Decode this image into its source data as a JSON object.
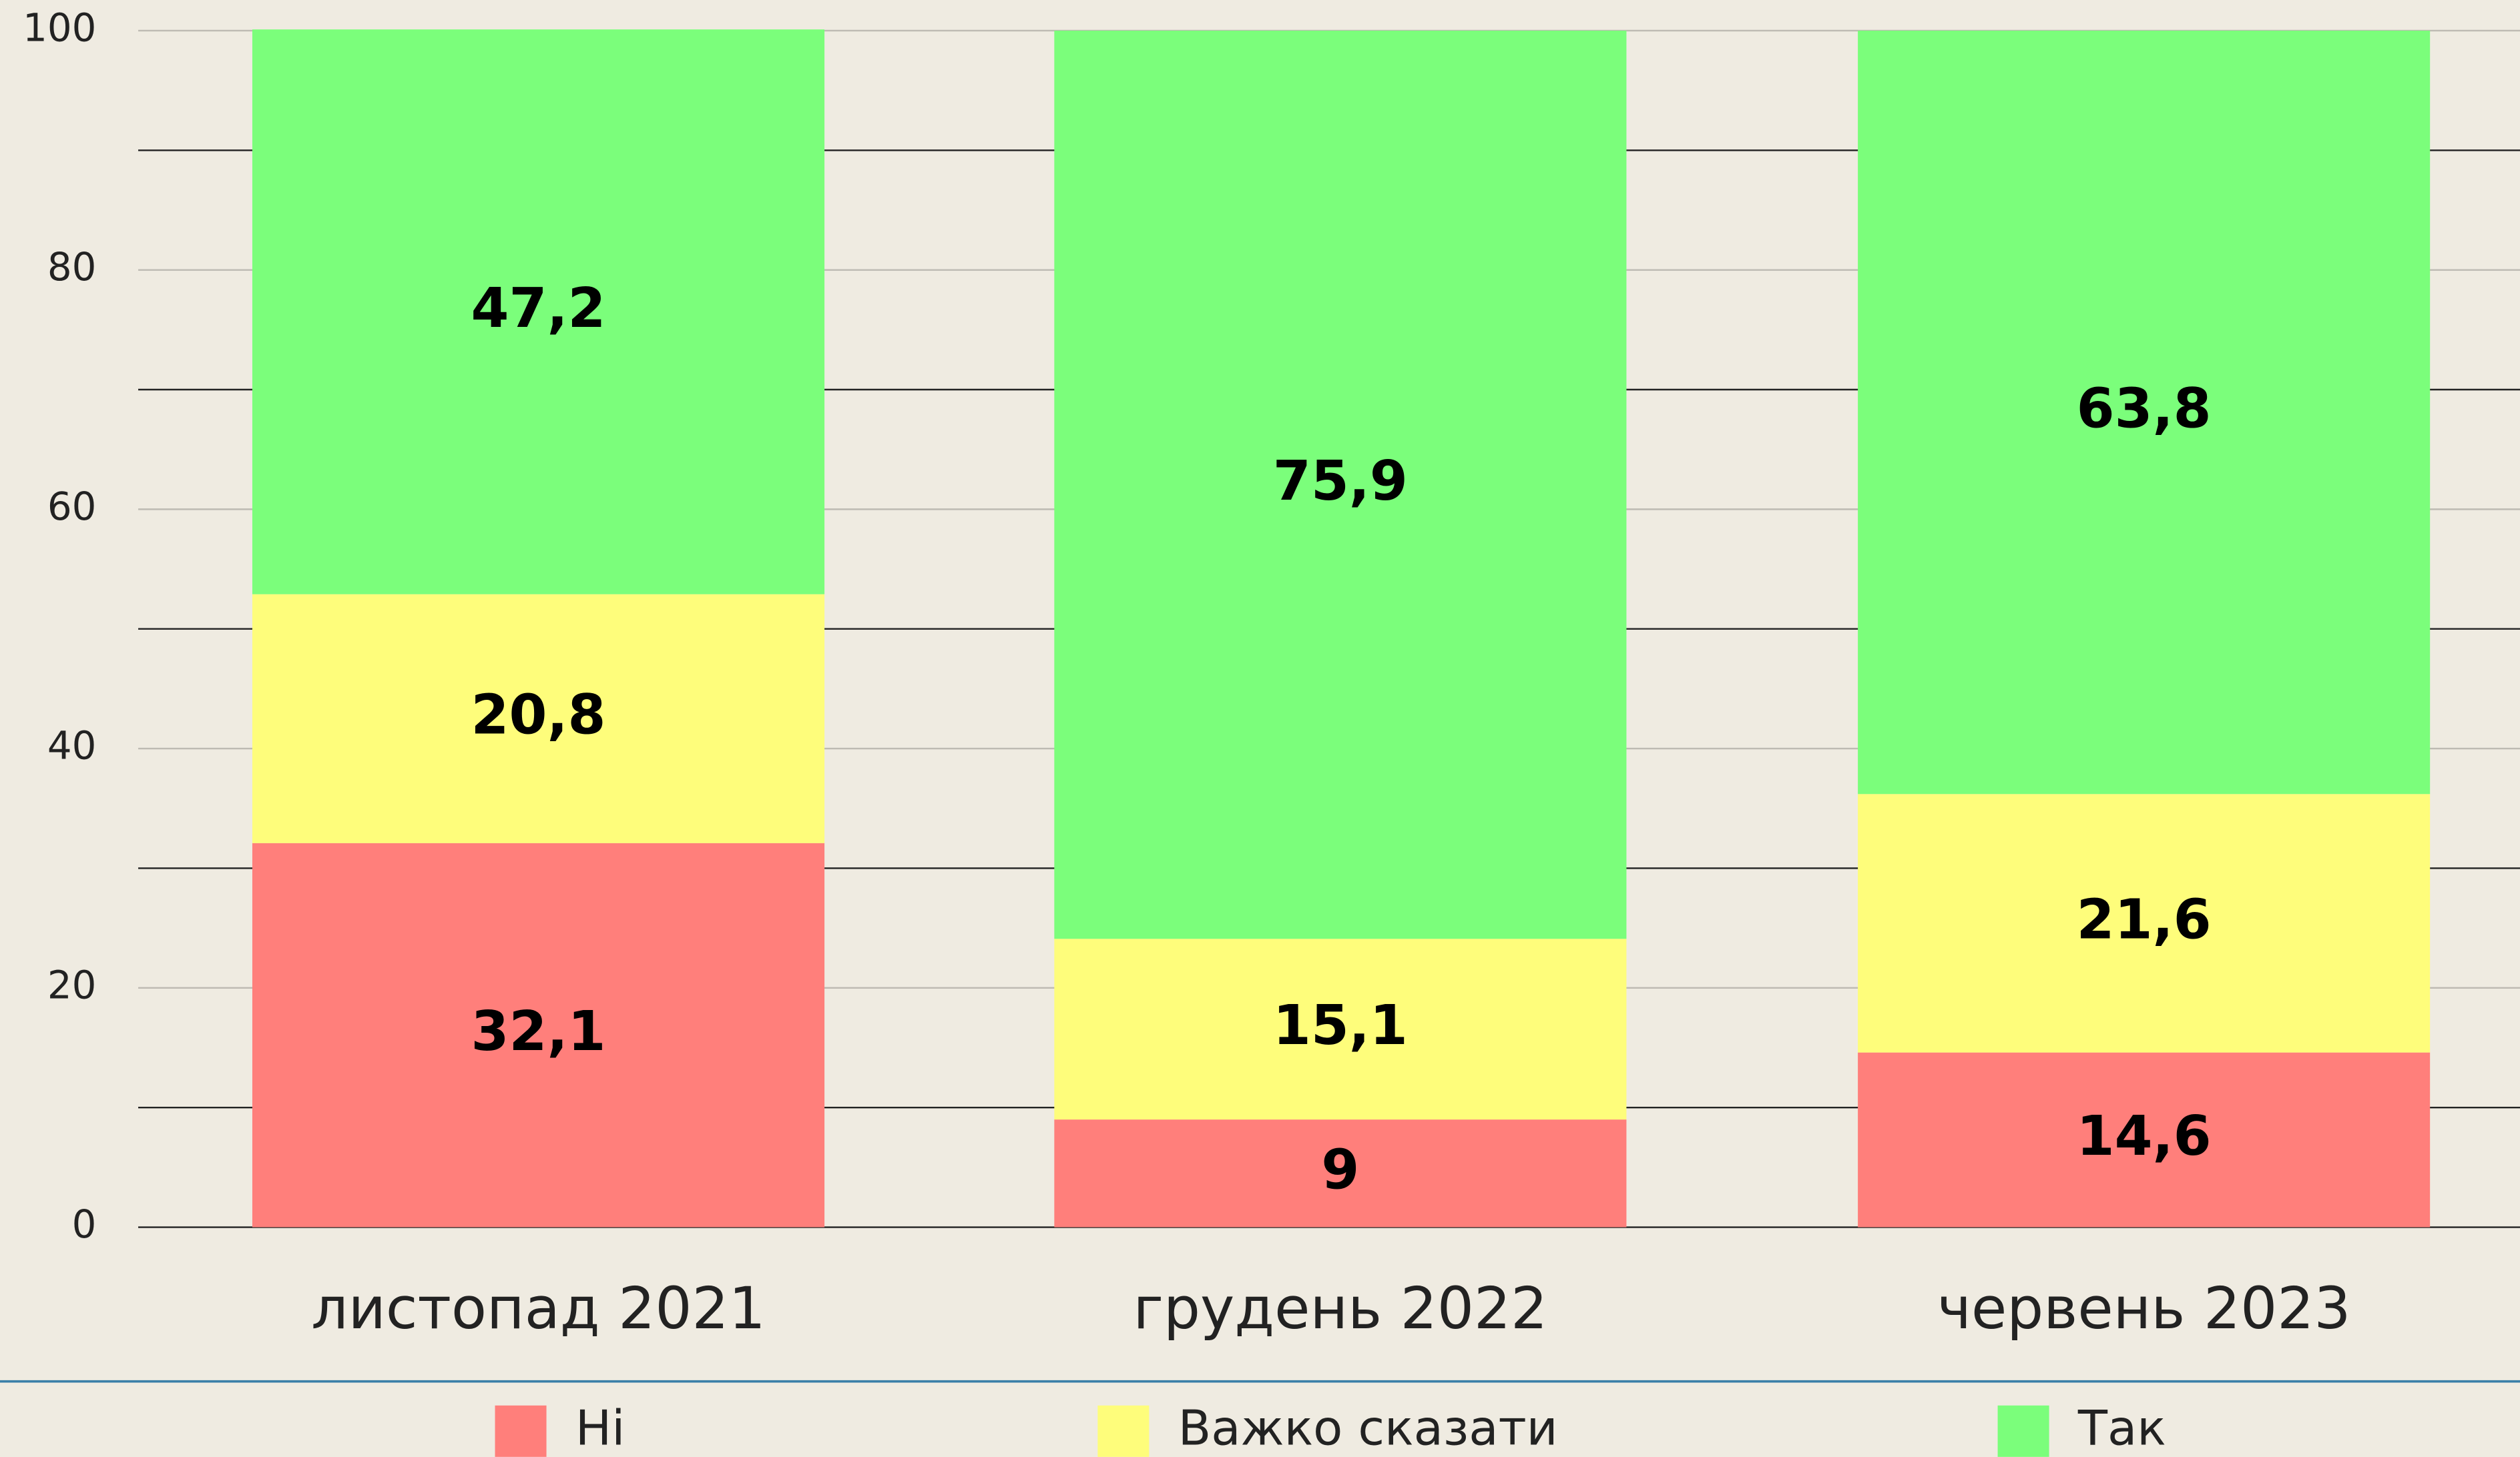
{
  "chart_data": {
    "type": "stacked_bar",
    "categories": [
      "листопад 2021",
      "грудень 2022",
      "червень 2023"
    ],
    "series": [
      {
        "name": "Ні",
        "color": "#ff7f7b",
        "values": [
          32.1,
          9,
          14.6
        ],
        "value_labels": [
          "32,1",
          "9",
          "14,6"
        ]
      },
      {
        "name": "Важко сказати",
        "color": "#fefd7b",
        "values": [
          20.8,
          15.1,
          21.6
        ],
        "value_labels": [
          "20,8",
          "15,1",
          "21,6"
        ]
      },
      {
        "name": "Так",
        "color": "#7bfe7b",
        "values": [
          47.2,
          75.9,
          63.8
        ],
        "value_labels": [
          "47,2",
          "75,9",
          "63,8"
        ]
      }
    ],
    "ylim": [
      0,
      100
    ],
    "yticks": [
      0,
      20,
      40,
      60,
      80,
      100
    ],
    "minor_yticks": [
      10,
      30,
      50,
      70,
      90
    ],
    "grid": true,
    "legend": "bottom"
  }
}
